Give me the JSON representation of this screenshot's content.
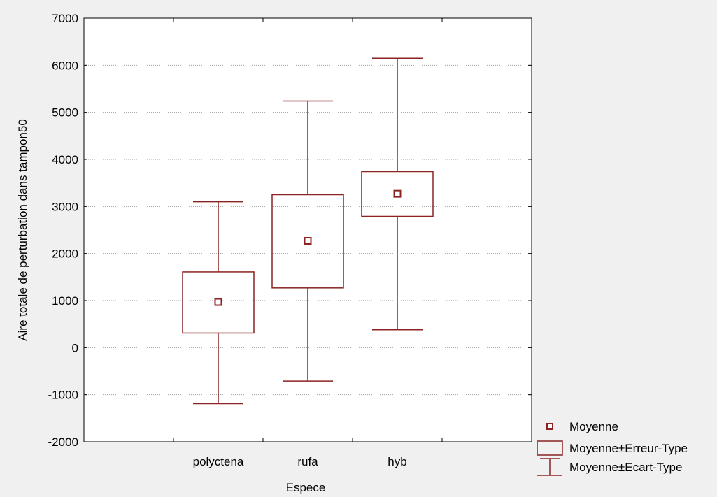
{
  "chart_data": {
    "type": "box",
    "xlabel": "Espece",
    "ylabel": "Aire totale de perturbation dans tampon50",
    "categories": [
      "polyctena",
      "rufa",
      "hyb"
    ],
    "mean": [
      970,
      2270,
      3270
    ],
    "se_low": [
      310,
      1270,
      2790
    ],
    "se_high": [
      1610,
      3250,
      3740
    ],
    "sd_low": [
      -1190,
      -710,
      380
    ],
    "sd_high": [
      3100,
      5240,
      6150
    ],
    "ylim": [
      -2000,
      7000
    ],
    "yticks": [
      -2000,
      -1000,
      0,
      1000,
      2000,
      3000,
      4000,
      5000,
      6000,
      7000
    ],
    "grid": "horizontal-dotted",
    "legend_position": "bottom-right",
    "legend": [
      "Moyenne",
      "Moyenne±Erreur-Type",
      "Moyenne±Ecart-Type"
    ],
    "colors": {
      "series": "#8b2323",
      "plot_bg": "#ffffff",
      "page_bg": "#f0f0f0",
      "grid": "#a0a0a0"
    }
  }
}
